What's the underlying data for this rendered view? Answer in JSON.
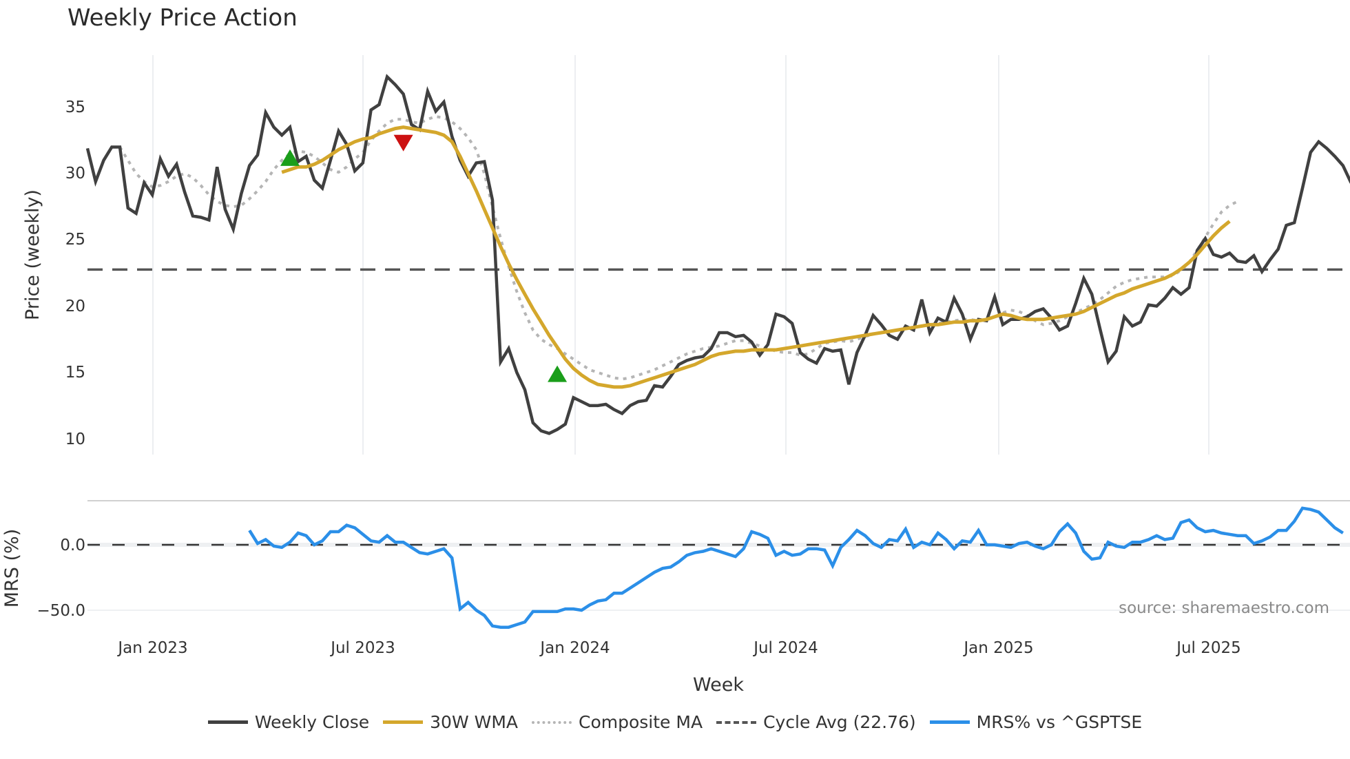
{
  "title": "Weekly Price Action",
  "source": "source: sharemaestro.com",
  "colors": {
    "close": "#404040",
    "wma": "#d4a72c",
    "composite": "#b5b5b5",
    "cycle": "#555555",
    "mrs": "#2b8fe8",
    "buy": "#1a9e1a",
    "sell": "#cc1111"
  },
  "chart_data": [
    {
      "type": "line",
      "title": "Weekly Price Action",
      "xlabel": "Week",
      "ylabel": "Price (weekly)",
      "ylim": [
        8.5,
        38.5
      ],
      "yticks": [
        10,
        15,
        20,
        25,
        30,
        35
      ],
      "xticks": [
        "Jan 2023",
        "Jul 2023",
        "Jan 2024",
        "Jul 2024",
        "Jan 2025",
        "Jul 2025"
      ],
      "x_start": "2022-11 (week 0)",
      "grid": "vertical only",
      "series": [
        {
          "name": "Weekly Close",
          "values": [
            31.9,
            29.4,
            31.0,
            32.0,
            32.0,
            27.4,
            27.0,
            29.3,
            28.4,
            31.1,
            29.8,
            30.7,
            28.6,
            26.8,
            26.7,
            26.5,
            30.5,
            27.3,
            25.8,
            28.5,
            30.6,
            31.4,
            34.6,
            33.5,
            32.9,
            33.5,
            30.9,
            31.3,
            29.5,
            28.9,
            31.0,
            33.2,
            32.2,
            30.2,
            30.8,
            34.8,
            35.2,
            37.3,
            36.7,
            36.0,
            33.7,
            33.3,
            36.2,
            34.7,
            35.4,
            32.8,
            31.0,
            29.8,
            30.8,
            30.9,
            28.0,
            15.8,
            16.8,
            15.0,
            13.7,
            11.2,
            10.6,
            10.4,
            10.7,
            11.1,
            13.1,
            12.8,
            12.5,
            12.5,
            12.6,
            12.2,
            11.9,
            12.5,
            12.8,
            12.9,
            14.0,
            13.9,
            14.7,
            15.6,
            15.9,
            16.1,
            16.2,
            16.8,
            18.0,
            18.0,
            17.7,
            17.8,
            17.3,
            16.3,
            17.1,
            19.4,
            19.2,
            18.7,
            16.5,
            16.0,
            15.7,
            16.8,
            16.6,
            16.7,
            14.1,
            16.5,
            17.8,
            19.3,
            18.6,
            17.8,
            17.5,
            18.5,
            18.2,
            20.5,
            18.0,
            19.1,
            18.8,
            20.6,
            19.4,
            17.5,
            19.0,
            18.9,
            20.7,
            18.6,
            19.0,
            19.0,
            19.2,
            19.6,
            19.8,
            19.1,
            18.2,
            18.5,
            20.2,
            22.1,
            20.9,
            18.3,
            15.8,
            16.6,
            19.2,
            18.5,
            18.8,
            20.1,
            20.0,
            20.6,
            21.4,
            20.9,
            21.4,
            24.2,
            25.1,
            23.9,
            23.7,
            24.0,
            23.4,
            23.3,
            23.8,
            22.6,
            23.5,
            24.3,
            26.1,
            26.3,
            28.9,
            31.6,
            32.4,
            31.9,
            31.3,
            30.6,
            29.3
          ]
        },
        {
          "name": "30W WMA",
          "start_week": 24,
          "values": [
            30.1,
            30.3,
            30.5,
            30.5,
            30.7,
            31.0,
            31.4,
            31.8,
            32.1,
            32.4,
            32.6,
            32.7,
            33.0,
            33.2,
            33.4,
            33.5,
            33.4,
            33.3,
            33.2,
            33.1,
            32.9,
            32.4,
            31.3,
            30.0,
            28.7,
            27.3,
            25.9,
            24.5,
            23.2,
            22.0,
            20.9,
            19.8,
            18.8,
            17.8,
            16.9,
            16.0,
            15.3,
            14.8,
            14.4,
            14.1,
            14.0,
            13.9,
            13.9,
            14.0,
            14.2,
            14.4,
            14.6,
            14.8,
            15.0,
            15.2,
            15.4,
            15.6,
            15.9,
            16.2,
            16.4,
            16.5,
            16.6,
            16.6,
            16.7,
            16.7,
            16.7,
            16.7,
            16.8,
            16.9,
            17.0,
            17.1,
            17.2,
            17.3,
            17.4,
            17.5,
            17.6,
            17.7,
            17.8,
            17.9,
            18.0,
            18.1,
            18.2,
            18.3,
            18.4,
            18.5,
            18.6,
            18.6,
            18.7,
            18.8,
            18.8,
            18.9,
            18.9,
            19.0,
            19.2,
            19.4,
            19.3,
            19.1,
            19.0,
            19.0,
            19.0,
            19.1,
            19.2,
            19.3,
            19.4,
            19.6,
            19.9,
            20.2,
            20.5,
            20.8,
            21.0,
            21.3,
            21.5,
            21.7,
            21.9,
            22.1,
            22.4,
            22.8,
            23.3,
            23.9,
            24.6,
            25.3,
            25.9,
            26.4
          ]
        },
        {
          "name": "Composite MA",
          "start_week": 4,
          "values": [
            32.0,
            31.0,
            30.0,
            29.4,
            29.0,
            29.1,
            29.4,
            29.8,
            30.0,
            29.7,
            29.1,
            28.4,
            27.9,
            27.6,
            27.5,
            27.6,
            28.1,
            28.7,
            29.4,
            30.3,
            31.0,
            31.5,
            31.7,
            31.6,
            31.3,
            30.8,
            30.3,
            30.1,
            30.5,
            31.1,
            31.6,
            32.5,
            33.2,
            33.8,
            34.1,
            34.1,
            33.9,
            33.8,
            34.1,
            34.3,
            34.2,
            33.9,
            33.4,
            32.7,
            31.8,
            30.0,
            27.5,
            25.1,
            23.0,
            21.1,
            19.5,
            18.2,
            17.5,
            17.1,
            16.8,
            16.4,
            16.0,
            15.6,
            15.2,
            15.0,
            14.8,
            14.6,
            14.5,
            14.6,
            14.8,
            15.0,
            15.2,
            15.5,
            15.8,
            16.1,
            16.4,
            16.6,
            16.8,
            16.9,
            17.0,
            17.2,
            17.4,
            17.4,
            17.2,
            17.0,
            16.8,
            16.6,
            16.5,
            16.5,
            16.3,
            16.4,
            16.8,
            17.2,
            17.3,
            17.4,
            17.3,
            17.5,
            17.7,
            17.9,
            18.0,
            18.1,
            18.2,
            18.3,
            18.4,
            18.5,
            18.6,
            18.7,
            18.8,
            18.9,
            19.0,
            19.0,
            18.9,
            19.0,
            19.2,
            19.5,
            19.7,
            19.6,
            19.3,
            18.9,
            18.6,
            18.7,
            18.9,
            19.2,
            19.5,
            19.8,
            20.1,
            20.5,
            21.0,
            21.5,
            21.8,
            22.0,
            22.1,
            22.2,
            22.2,
            22.2,
            22.3,
            22.7,
            23.3,
            24.2,
            25.2,
            26.2,
            27.1,
            27.6,
            27.9
          ]
        },
        {
          "name": "Cycle Avg (22.76)",
          "constant": 22.76
        }
      ],
      "markers": [
        {
          "type": "buy",
          "week": 25,
          "value": 31.2
        },
        {
          "type": "sell",
          "week": 39,
          "value": 32.3
        },
        {
          "type": "buy",
          "week": 58,
          "value": 14.9
        }
      ]
    },
    {
      "type": "line",
      "ylabel": "MRS (%)",
      "yticks": [
        0.0,
        -50.0
      ],
      "ylim": [
        -65,
        35
      ],
      "series": [
        {
          "name": "MRS% vs ^GSPTSE",
          "start_week": 20,
          "values": [
            11,
            1,
            4,
            -1,
            -2,
            2,
            9,
            7,
            0,
            3,
            10,
            10,
            15,
            13,
            8,
            3,
            2,
            7,
            2,
            2,
            -2,
            -6,
            -7,
            -5,
            -3,
            -10,
            -49,
            -44,
            -50,
            -54,
            -62,
            -63,
            -63,
            -61,
            -59,
            -51,
            -51,
            -51,
            -51,
            -49,
            -49,
            -50,
            -46,
            -43,
            -42,
            -37,
            -37,
            -33,
            -29,
            -25,
            -21,
            -18,
            -17,
            -13,
            -8,
            -6,
            -5,
            -3,
            -5,
            -7,
            -9,
            -3,
            10,
            8,
            5,
            -8,
            -5,
            -8,
            -7,
            -3,
            -3,
            -4,
            -16,
            -2,
            4,
            11,
            7,
            1,
            -2,
            4,
            3,
            12,
            -2,
            2,
            0,
            9,
            4,
            -3,
            3,
            2,
            11,
            0,
            0,
            -1,
            -2,
            1,
            2,
            -1,
            -3,
            0,
            10,
            16,
            9,
            -5,
            -11,
            -10,
            2,
            -1,
            -2,
            2,
            2,
            4,
            7,
            4,
            5,
            17,
            19,
            13,
            10,
            11,
            9,
            8,
            7,
            7,
            1,
            3,
            6,
            11,
            11,
            18,
            28,
            27,
            25,
            19,
            13,
            9
          ]
        }
      ]
    }
  ],
  "axes": {
    "price_ylabel": "Price (weekly)",
    "mrs_ylabel": "MRS (%)",
    "xlabel": "Week",
    "price_ticks": [
      "35",
      "30",
      "25",
      "20",
      "15",
      "10"
    ],
    "mrs_ticks": [
      "0.0",
      "−50.0"
    ],
    "x_ticks": [
      "Jan 2023",
      "Jul 2023",
      "Jan 2024",
      "Jul 2024",
      "Jan 2025",
      "Jul 2025"
    ]
  },
  "legend": [
    {
      "label": "Weekly Close",
      "style": "solid",
      "color": "#404040"
    },
    {
      "label": "30W WMA",
      "style": "solid",
      "color": "#d4a72c"
    },
    {
      "label": "Composite MA",
      "style": "dotted",
      "color": "#b5b5b5"
    },
    {
      "label": "Cycle Avg (22.76)",
      "style": "dashed",
      "color": "#555555"
    },
    {
      "label": "MRS% vs ^GSPTSE",
      "style": "solid",
      "color": "#2b8fe8"
    }
  ]
}
